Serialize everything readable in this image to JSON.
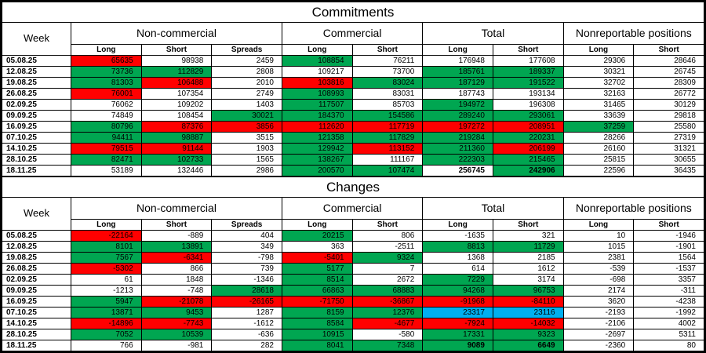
{
  "colors": {
    "green": "#00a651",
    "red": "#ff0000",
    "blue": "#00b0f0",
    "border": "#000000"
  },
  "chart_data": [
    {
      "type": "table",
      "title": "Commitments",
      "week_header": "Week",
      "groups": [
        {
          "label": "Non-commercial",
          "cols": [
            "Long",
            "Short",
            "Spreads"
          ]
        },
        {
          "label": "Commercial",
          "cols": [
            "Long",
            "Short"
          ]
        },
        {
          "label": "Total",
          "cols": [
            "Long",
            "Short"
          ]
        },
        {
          "label": "Nonreportable positions",
          "cols": [
            "Long",
            "Short"
          ]
        }
      ],
      "rows": [
        {
          "week": "05.08.25",
          "cells": [
            {
              "v": 65635,
              "bg": "red"
            },
            {
              "v": 98938
            },
            {
              "v": 2459
            },
            {
              "v": 108854,
              "bg": "green"
            },
            {
              "v": 76211
            },
            {
              "v": 176948
            },
            {
              "v": 177608
            },
            {
              "v": 29306
            },
            {
              "v": 28646
            }
          ]
        },
        {
          "week": "12.08.25",
          "cells": [
            {
              "v": 73736,
              "bg": "green"
            },
            {
              "v": 112829,
              "bg": "green"
            },
            {
              "v": 2808
            },
            {
              "v": 109217
            },
            {
              "v": 73700
            },
            {
              "v": 185761,
              "bg": "green"
            },
            {
              "v": 189337,
              "bg": "green"
            },
            {
              "v": 30321
            },
            {
              "v": 26745
            }
          ]
        },
        {
          "week": "19.08.25",
          "cells": [
            {
              "v": 81303,
              "bg": "green"
            },
            {
              "v": 106488,
              "bg": "red"
            },
            {
              "v": 2010
            },
            {
              "v": 103816,
              "bg": "red"
            },
            {
              "v": 83024,
              "bg": "green"
            },
            {
              "v": 187129,
              "bg": "green"
            },
            {
              "v": 191522,
              "bg": "green"
            },
            {
              "v": 32702
            },
            {
              "v": 28309
            }
          ]
        },
        {
          "week": "26.08.25",
          "cells": [
            {
              "v": 76001,
              "bg": "red"
            },
            {
              "v": 107354
            },
            {
              "v": 2749
            },
            {
              "v": 108993,
              "bg": "green"
            },
            {
              "v": 83031
            },
            {
              "v": 187743
            },
            {
              "v": 193134
            },
            {
              "v": 32163
            },
            {
              "v": 26772
            }
          ]
        },
        {
          "week": "02.09.25",
          "cells": [
            {
              "v": 76062
            },
            {
              "v": 109202
            },
            {
              "v": 1403
            },
            {
              "v": 117507,
              "bg": "green"
            },
            {
              "v": 85703
            },
            {
              "v": 194972,
              "bg": "green"
            },
            {
              "v": 196308
            },
            {
              "v": 31465
            },
            {
              "v": 30129
            }
          ]
        },
        {
          "week": "09.09.25",
          "cells": [
            {
              "v": 74849
            },
            {
              "v": 108454
            },
            {
              "v": 30021,
              "bg": "green"
            },
            {
              "v": 184370,
              "bg": "green"
            },
            {
              "v": 154586,
              "bg": "green"
            },
            {
              "v": 289240,
              "bg": "green"
            },
            {
              "v": 293061,
              "bg": "green"
            },
            {
              "v": 33639
            },
            {
              "v": 29818
            }
          ]
        },
        {
          "week": "16.09.25",
          "cells": [
            {
              "v": 80796,
              "bg": "green"
            },
            {
              "v": 87376,
              "bg": "red"
            },
            {
              "v": 3856,
              "bg": "red"
            },
            {
              "v": 112620,
              "bg": "red"
            },
            {
              "v": 117719,
              "bg": "red"
            },
            {
              "v": 197272,
              "bg": "red"
            },
            {
              "v": 208951,
              "bg": "red"
            },
            {
              "v": 37259,
              "bg": "green"
            },
            {
              "v": 25580
            }
          ]
        },
        {
          "week": "07.10.25",
          "cells": [
            {
              "v": 94411,
              "bg": "green"
            },
            {
              "v": 98887,
              "bg": "green"
            },
            {
              "v": 3515
            },
            {
              "v": 121358,
              "bg": "green"
            },
            {
              "v": 117829,
              "bg": "green"
            },
            {
              "v": 219284,
              "bg": "green"
            },
            {
              "v": 220231,
              "bg": "green"
            },
            {
              "v": 28266
            },
            {
              "v": 27319
            }
          ]
        },
        {
          "week": "14.10.25",
          "cells": [
            {
              "v": 79515,
              "bg": "red"
            },
            {
              "v": 91144,
              "bg": "red"
            },
            {
              "v": 1903
            },
            {
              "v": 129942,
              "bg": "green"
            },
            {
              "v": 113152,
              "bg": "red"
            },
            {
              "v": 211360,
              "bg": "green"
            },
            {
              "v": 206199,
              "bg": "red"
            },
            {
              "v": 26160
            },
            {
              "v": 31321
            }
          ]
        },
        {
          "week": "28.10.25",
          "cells": [
            {
              "v": 82471,
              "bg": "green"
            },
            {
              "v": 102733,
              "bg": "green"
            },
            {
              "v": 1565
            },
            {
              "v": 138267,
              "bg": "green"
            },
            {
              "v": 111167
            },
            {
              "v": 222303,
              "bg": "green"
            },
            {
              "v": 215465,
              "bg": "green"
            },
            {
              "v": 25815
            },
            {
              "v": 30655
            }
          ]
        },
        {
          "week": "18.11.25",
          "cells": [
            {
              "v": 53189
            },
            {
              "v": 132446
            },
            {
              "v": 2986
            },
            {
              "v": 200570,
              "bg": "green"
            },
            {
              "v": 107474,
              "bg": "green"
            },
            {
              "v": 256745,
              "b": true
            },
            {
              "v": 242906,
              "bg": "green",
              "b": true
            },
            {
              "v": 22596
            },
            {
              "v": 36435
            }
          ]
        }
      ]
    },
    {
      "type": "table",
      "title": "Changes",
      "week_header": "Week",
      "groups": [
        {
          "label": "Non-commercial",
          "cols": [
            "Long",
            "Short",
            "Spreads"
          ]
        },
        {
          "label": "Commercial",
          "cols": [
            "Long",
            "Short"
          ]
        },
        {
          "label": "Total",
          "cols": [
            "Long",
            "Short"
          ]
        },
        {
          "label": "Nonreportable positions",
          "cols": [
            "Long",
            "Short"
          ]
        }
      ],
      "rows": [
        {
          "week": "05.08.25",
          "cells": [
            {
              "v": -22164,
              "bg": "red"
            },
            {
              "v": -889
            },
            {
              "v": 404
            },
            {
              "v": 20215,
              "bg": "green"
            },
            {
              "v": 806
            },
            {
              "v": -1635
            },
            {
              "v": 321
            },
            {
              "v": 10
            },
            {
              "v": -1946
            }
          ]
        },
        {
          "week": "12.08.25",
          "cells": [
            {
              "v": 8101,
              "bg": "green"
            },
            {
              "v": 13891,
              "bg": "green"
            },
            {
              "v": 349
            },
            {
              "v": 363
            },
            {
              "v": -2511
            },
            {
              "v": 8813,
              "bg": "green"
            },
            {
              "v": 11729,
              "bg": "green"
            },
            {
              "v": 1015
            },
            {
              "v": -1901
            }
          ]
        },
        {
          "week": "19.08.25",
          "cells": [
            {
              "v": 7567,
              "bg": "green"
            },
            {
              "v": -6341,
              "bg": "red"
            },
            {
              "v": -798
            },
            {
              "v": -5401,
              "bg": "red"
            },
            {
              "v": 9324,
              "bg": "green"
            },
            {
              "v": 1368
            },
            {
              "v": 2185
            },
            {
              "v": 2381
            },
            {
              "v": 1564
            }
          ]
        },
        {
          "week": "26.08.25",
          "cells": [
            {
              "v": -5302,
              "bg": "red"
            },
            {
              "v": 866
            },
            {
              "v": 739
            },
            {
              "v": 5177,
              "bg": "green"
            },
            {
              "v": 7
            },
            {
              "v": 614
            },
            {
              "v": 1612
            },
            {
              "v": -539
            },
            {
              "v": -1537
            }
          ]
        },
        {
          "week": "02.09.25",
          "cells": [
            {
              "v": 61
            },
            {
              "v": 1848
            },
            {
              "v": -1346
            },
            {
              "v": 8514,
              "bg": "green"
            },
            {
              "v": 2672
            },
            {
              "v": 7229,
              "bg": "green"
            },
            {
              "v": 3174
            },
            {
              "v": -698
            },
            {
              "v": 3357
            }
          ]
        },
        {
          "week": "09.09.25",
          "cells": [
            {
              "v": -1213
            },
            {
              "v": -748
            },
            {
              "v": 28618,
              "bg": "green"
            },
            {
              "v": 66863,
              "bg": "green"
            },
            {
              "v": 68883,
              "bg": "green"
            },
            {
              "v": 94268,
              "bg": "green"
            },
            {
              "v": 96753,
              "bg": "green"
            },
            {
              "v": 2174
            },
            {
              "v": -311
            }
          ]
        },
        {
          "week": "16.09.25",
          "cells": [
            {
              "v": 5947,
              "bg": "green"
            },
            {
              "v": -21078,
              "bg": "red"
            },
            {
              "v": -26165,
              "bg": "red"
            },
            {
              "v": -71750,
              "bg": "red"
            },
            {
              "v": -36867,
              "bg": "red"
            },
            {
              "v": -91968,
              "bg": "red"
            },
            {
              "v": -84110,
              "bg": "red"
            },
            {
              "v": 3620
            },
            {
              "v": -4238
            }
          ]
        },
        {
          "week": "07.10.25",
          "cells": [
            {
              "v": 13871,
              "bg": "green"
            },
            {
              "v": 9453,
              "bg": "green"
            },
            {
              "v": 1287
            },
            {
              "v": 8159,
              "bg": "green"
            },
            {
              "v": 12376,
              "bg": "green"
            },
            {
              "v": 23317,
              "bg": "blue"
            },
            {
              "v": 23116,
              "bg": "blue"
            },
            {
              "v": -2193
            },
            {
              "v": -1992
            }
          ]
        },
        {
          "week": "14.10.25",
          "cells": [
            {
              "v": -14896,
              "bg": "red"
            },
            {
              "v": -7743,
              "bg": "red"
            },
            {
              "v": -1612
            },
            {
              "v": 8584,
              "bg": "green"
            },
            {
              "v": -4677,
              "bg": "red"
            },
            {
              "v": -7924,
              "bg": "red"
            },
            {
              "v": -14032,
              "bg": "red"
            },
            {
              "v": -2106
            },
            {
              "v": 4002
            }
          ]
        },
        {
          "week": "28.10.25",
          "cells": [
            {
              "v": 7052,
              "bg": "green"
            },
            {
              "v": 10539,
              "bg": "green"
            },
            {
              "v": -636
            },
            {
              "v": 10915,
              "bg": "green"
            },
            {
              "v": -580
            },
            {
              "v": 17331,
              "bg": "green"
            },
            {
              "v": 9323,
              "bg": "green"
            },
            {
              "v": -2697
            },
            {
              "v": 5311
            }
          ]
        },
        {
          "week": "18.11.25",
          "cells": [
            {
              "v": 766
            },
            {
              "v": -981
            },
            {
              "v": 282
            },
            {
              "v": 8041,
              "bg": "green"
            },
            {
              "v": 7348,
              "bg": "green"
            },
            {
              "v": 9089,
              "bg": "green",
              "b": true
            },
            {
              "v": 6649,
              "bg": "green",
              "b": true
            },
            {
              "v": -2360
            },
            {
              "v": 80
            }
          ]
        }
      ]
    }
  ]
}
